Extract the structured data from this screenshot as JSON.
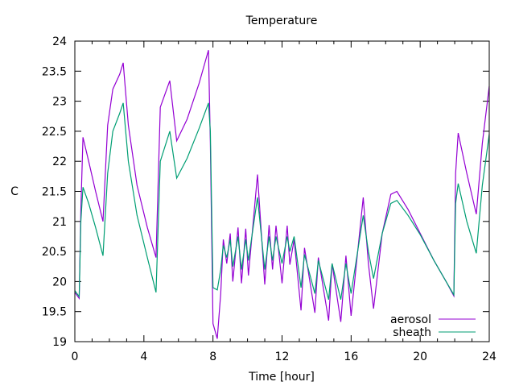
{
  "chart_data": {
    "type": "line",
    "title": "Temperature",
    "xlabel": "Time [hour]",
    "ylabel": "C",
    "xlim": [
      0,
      24
    ],
    "ylim": [
      19,
      24
    ],
    "xticks": [
      0,
      4,
      8,
      12,
      16,
      20,
      24
    ],
    "yticks": [
      19,
      19.5,
      20,
      20.5,
      21,
      21.5,
      22,
      22.5,
      23,
      23.5,
      24
    ],
    "ytick_labels": [
      "19",
      "19.5",
      "20",
      "20.5",
      "21",
      "21.5",
      "22",
      "22.5",
      "23",
      "23.5",
      "24"
    ],
    "xtick_labels": [
      "0",
      "4",
      "8",
      "12",
      "16",
      "20",
      "24"
    ],
    "grid": false,
    "legend_position": "bottom-right",
    "x": [
      0,
      0.25,
      0.35,
      0.47,
      0.8,
      1.2,
      1.63,
      1.9,
      2.2,
      2.6,
      2.8,
      3.1,
      3.6,
      4.2,
      4.7,
      4.95,
      5.5,
      5.9,
      6.5,
      7.2,
      7.74,
      7.85,
      8.0,
      8.25,
      8.45,
      8.6,
      8.8,
      9.0,
      9.15,
      9.45,
      9.65,
      9.9,
      10.05,
      10.58,
      11.0,
      11.25,
      11.45,
      11.65,
      12.0,
      12.3,
      12.45,
      12.7,
      13.1,
      13.3,
      13.9,
      14.1,
      14.7,
      14.9,
      15.4,
      15.7,
      16.0,
      16.7,
      17.0,
      17.3,
      17.8,
      18.3,
      18.65,
      19.3,
      20.0,
      20.8,
      21.5,
      21.95,
      22.05,
      22.2,
      22.7,
      23.25,
      23.6,
      24.0
    ],
    "series": [
      {
        "name": "aerosol",
        "color": "#9400d3",
        "values": [
          19.82,
          19.72,
          21.2,
          22.4,
          22.0,
          21.5,
          21.0,
          22.6,
          23.2,
          23.45,
          23.64,
          22.6,
          21.6,
          20.9,
          20.4,
          22.9,
          23.34,
          22.34,
          22.7,
          23.3,
          23.85,
          22.3,
          19.3,
          19.05,
          19.8,
          20.7,
          20.3,
          20.8,
          20.0,
          20.9,
          19.97,
          20.88,
          20.1,
          21.78,
          19.95,
          20.94,
          20.2,
          20.93,
          19.97,
          20.93,
          20.28,
          20.7,
          19.52,
          20.56,
          19.48,
          20.4,
          19.35,
          20.3,
          19.33,
          20.43,
          19.43,
          21.4,
          20.3,
          19.55,
          20.8,
          21.45,
          21.5,
          21.2,
          20.8,
          20.35,
          20.0,
          19.76,
          21.8,
          22.47,
          21.8,
          21.12,
          22.3,
          23.25
        ]
      },
      {
        "name": "sheath",
        "color": "#009e73",
        "values": [
          19.85,
          19.75,
          21.0,
          21.57,
          21.3,
          20.9,
          20.43,
          21.8,
          22.5,
          22.8,
          22.97,
          22.0,
          21.1,
          20.4,
          19.82,
          22.0,
          22.5,
          21.72,
          22.05,
          22.55,
          22.97,
          22.5,
          19.9,
          19.86,
          20.2,
          20.6,
          20.4,
          20.7,
          20.25,
          20.75,
          20.2,
          20.7,
          20.35,
          21.4,
          20.2,
          20.75,
          20.35,
          20.75,
          20.3,
          20.75,
          20.5,
          20.75,
          19.9,
          20.45,
          19.8,
          20.35,
          19.7,
          20.3,
          19.7,
          20.3,
          19.8,
          21.1,
          20.5,
          20.05,
          20.8,
          21.3,
          21.35,
          21.1,
          20.78,
          20.35,
          20.0,
          19.78,
          21.3,
          21.63,
          21.0,
          20.47,
          21.6,
          22.45
        ]
      }
    ]
  }
}
